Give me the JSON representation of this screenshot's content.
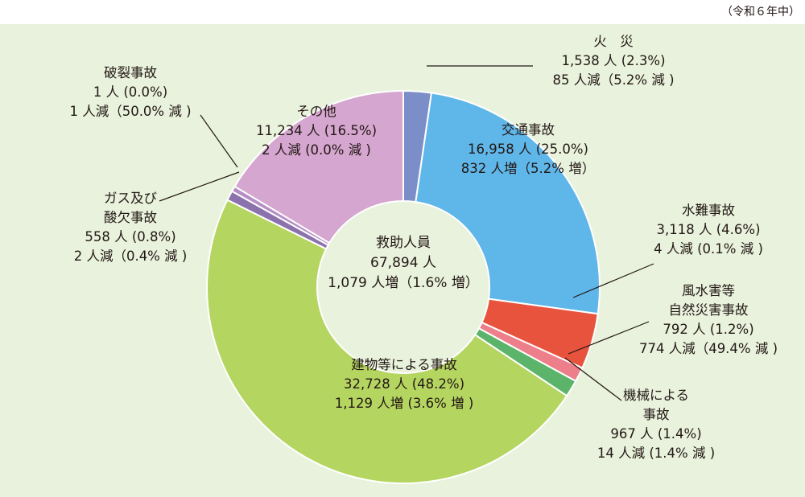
{
  "note": "（令和６年中）",
  "chart_data": {
    "type": "pie",
    "center": {
      "title": "救助人員",
      "total": "67,894 人",
      "change": "1,079 人増（1.6% 増）"
    },
    "slices": [
      {
        "name": "火　災",
        "lines": [
          "火　災"
        ],
        "value": 1538,
        "percent": 2.3,
        "count": "1,538 人 (2.3%)",
        "change": "85 人減（5.2% 減 )",
        "color": "#7b8ec8"
      },
      {
        "name": "交通事故",
        "lines": [
          "交通事故"
        ],
        "value": 16958,
        "percent": 25.0,
        "count": "16,958 人 (25.0%)",
        "change": "832 人増（5.2% 増）",
        "color": "#5fb6e9"
      },
      {
        "name": "水難事故",
        "lines": [
          "水難事故"
        ],
        "value": 3118,
        "percent": 4.6,
        "count": "3,118 人 (4.6%)",
        "change": "4 人減 (0.1% 減 )",
        "color": "#e8533e"
      },
      {
        "name": "風水害等自然災害事故",
        "lines": [
          "風水害等",
          "自然災害事故"
        ],
        "value": 792,
        "percent": 1.2,
        "count": "792 人 (1.2%)",
        "change": "774 人減（49.4% 減 )",
        "color": "#ec7f8a"
      },
      {
        "name": "機械による事故",
        "lines": [
          "機械による",
          "事故"
        ],
        "value": 967,
        "percent": 1.4,
        "count": "967 人 (1.4%)",
        "change": "14 人減 (1.4% 減 )",
        "color": "#5bb46a"
      },
      {
        "name": "建物等による事故",
        "lines": [
          "建物等による事故"
        ],
        "value": 32728,
        "percent": 48.2,
        "count": "32,728 人 (48.2%)",
        "change": "1,129 人増 (3.6% 増 )",
        "color": "#b5d561"
      },
      {
        "name": "ガス及び酸欠事故",
        "lines": [
          "ガス及び",
          "酸欠事故"
        ],
        "value": 558,
        "percent": 0.8,
        "count": "558 人 (0.8%)",
        "change": "2 人減（0.4% 減 )",
        "color": "#8b72ad"
      },
      {
        "name": "破裂事故",
        "lines": [
          "破裂事故"
        ],
        "value": 1,
        "percent": 0.0,
        "count": "1 人 (0.0%)",
        "change": "1 人減（50.0% 減 )",
        "color": "#b48ec4"
      },
      {
        "name": "その他",
        "lines": [
          "その他"
        ],
        "value": 11234,
        "percent": 16.5,
        "count": "11,234 人 (16.5%)",
        "change": "2 人減 (0.0% 減 )",
        "color": "#d5a6cf"
      }
    ]
  }
}
